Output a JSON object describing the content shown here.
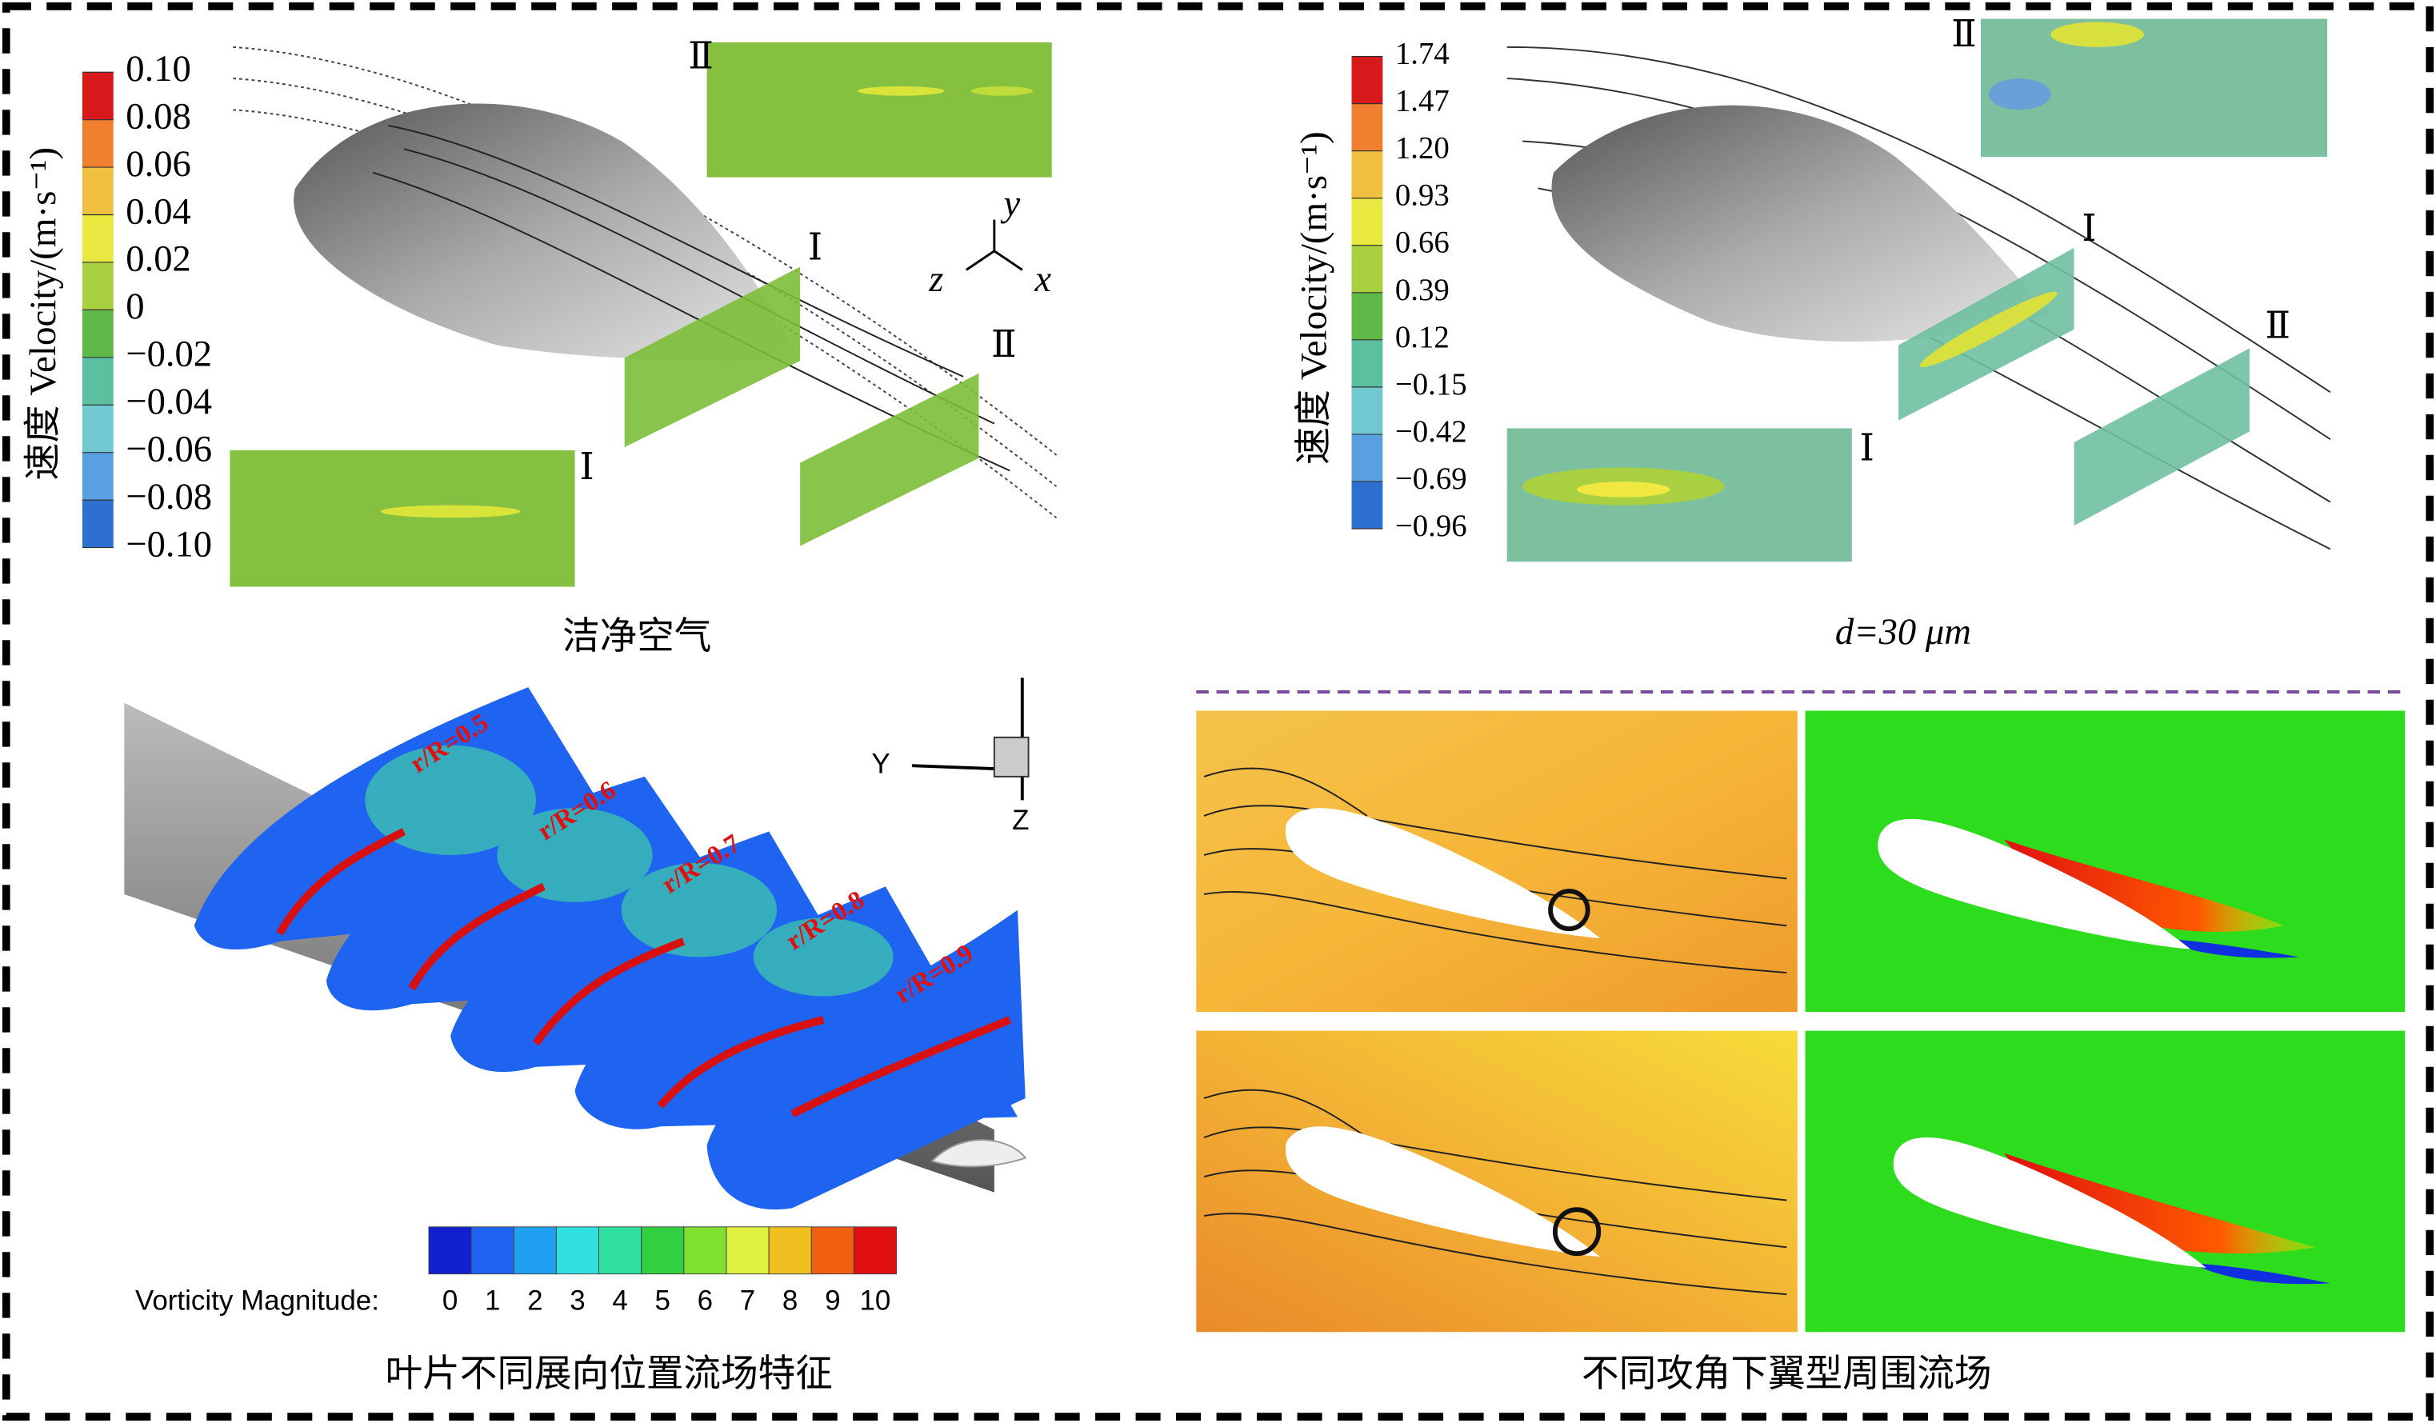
{
  "panels": [
    {
      "colorbar_title": "速度 Velocity/(m·s⁻¹)",
      "colorbar_labels": [
        "0.10",
        "0.08",
        "0.06",
        "0.04",
        "0.02",
        "0",
        "−0.02",
        "−0.04",
        "−0.06",
        "−0.08",
        "−0.10"
      ],
      "plane_labels": [
        "Ⅱ",
        "Ⅰ",
        "Ⅱ",
        "Ⅰ"
      ],
      "axis_labels": [
        "y",
        "z",
        "x"
      ],
      "caption": "洁净空气"
    },
    {
      "colorbar_title": "速度 Velocity/(m·s⁻¹)",
      "colorbar_labels": [
        "1.74",
        "1.47",
        "1.20",
        "0.93",
        "0.66",
        "0.39",
        "0.12",
        "−0.15",
        "−0.42",
        "−0.69",
        "−0.96"
      ],
      "plane_labels": [
        "Ⅱ",
        "Ⅰ",
        "Ⅱ",
        "Ⅰ"
      ],
      "caption": "d=30 μm"
    },
    {
      "section_labels": [
        "r/R=0.5",
        "r/R=0.6",
        "r/R=0.7",
        "r/R=0.8",
        "r/R=0.9"
      ],
      "axis_labels": [
        "Y",
        "Z"
      ],
      "colorbar_title": "Vorticity Magnitude:",
      "colorbar_labels": [
        "0",
        "1",
        "2",
        "3",
        "4",
        "5",
        "6",
        "7",
        "8",
        "9",
        "10"
      ],
      "caption": "叶片不同展向位置流场特征"
    },
    {
      "caption": "不同攻角下翼型周围流场"
    }
  ]
}
